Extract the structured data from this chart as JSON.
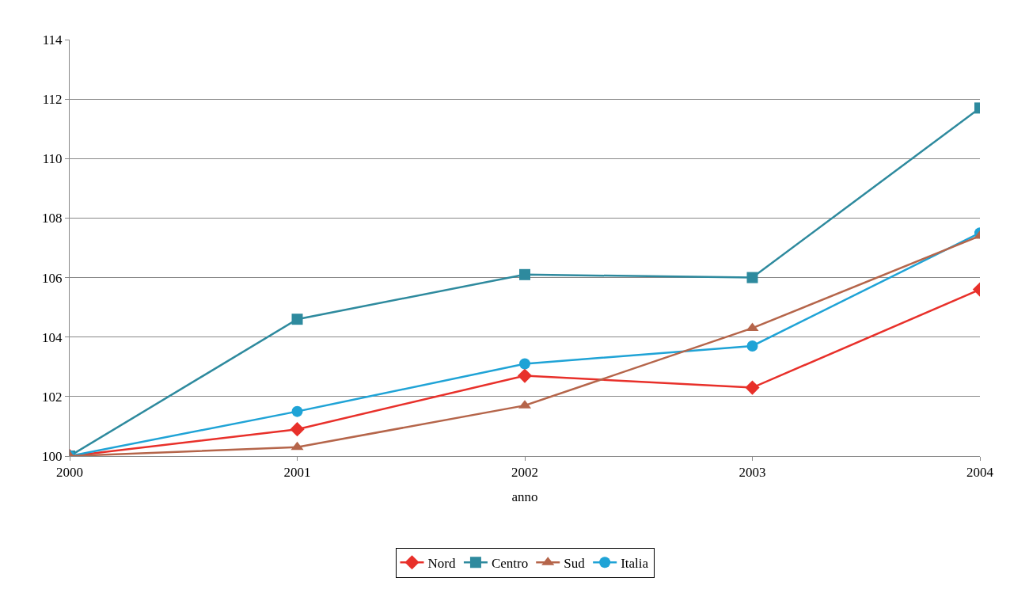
{
  "chart_data": {
    "type": "line",
    "xlabel": "anno",
    "x": [
      2000,
      2001,
      2002,
      2003,
      2004
    ],
    "xlim": [
      2000,
      2004
    ],
    "xticks": [
      2000,
      2001,
      2002,
      2003,
      2004
    ],
    "ylim": [
      100,
      114
    ],
    "yticks": [
      100,
      102,
      104,
      106,
      108,
      110,
      112,
      114
    ],
    "grid": "y",
    "legend": "bottom",
    "line_style": "solid",
    "series": [
      {
        "name": "Nord",
        "color": "#e8302a",
        "marker": "diamond",
        "values": [
          100,
          100.9,
          102.7,
          102.3,
          105.6
        ]
      },
      {
        "name": "Centro",
        "color": "#2e8a9e",
        "marker": "square",
        "values": [
          100,
          104.6,
          106.1,
          106.0,
          111.7
        ]
      },
      {
        "name": "Sud",
        "color": "#b5654a",
        "marker": "triangle",
        "values": [
          100,
          100.3,
          101.7,
          104.3,
          107.4
        ]
      },
      {
        "name": "Italia",
        "color": "#1fa3d6",
        "marker": "circle",
        "values": [
          100,
          101.5,
          103.1,
          103.7,
          107.5
        ]
      }
    ]
  }
}
